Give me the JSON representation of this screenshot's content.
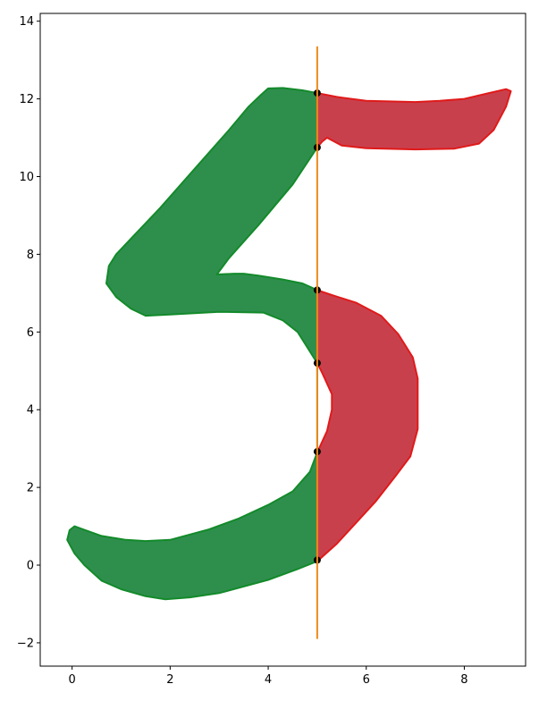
{
  "chart_data": {
    "type": "area",
    "xlim": [
      -0.65,
      9.25
    ],
    "ylim": [
      -2.6,
      14.2
    ],
    "x_ticks": [
      0,
      2,
      4,
      6,
      8
    ],
    "y_ticks": [
      -2,
      0,
      2,
      4,
      6,
      8,
      10,
      12,
      14
    ],
    "x_tick_labels": [
      "0",
      "2",
      "4",
      "6",
      "8"
    ],
    "y_tick_labels": [
      "−2",
      "0",
      "2",
      "4",
      "6",
      "8",
      "10",
      "12",
      "14"
    ],
    "grid": false,
    "legend": "none",
    "colors": {
      "left_fill": "#2e8f4d",
      "left_stroke": "#138a2a",
      "right_fill": "#c9404d",
      "right_stroke": "#e01a1a",
      "cut_line": "#ee8a1c",
      "points": "#000000"
    },
    "cut_line": {
      "x": 5.0,
      "y_range": [
        -1.9,
        13.35
      ]
    },
    "series": [
      {
        "part": "left",
        "polygon": [
          [
            5.0,
            12.15
          ],
          [
            4.7,
            12.22
          ],
          [
            4.3,
            12.28
          ],
          [
            4.0,
            12.27
          ],
          [
            3.85,
            12.1
          ],
          [
            3.6,
            11.8
          ],
          [
            3.2,
            11.2
          ],
          [
            2.5,
            10.2
          ],
          [
            1.8,
            9.2
          ],
          [
            1.2,
            8.4
          ],
          [
            0.9,
            8.0
          ],
          [
            0.75,
            7.7
          ],
          [
            0.7,
            7.25
          ],
          [
            0.9,
            6.9
          ],
          [
            1.2,
            6.6
          ],
          [
            1.5,
            6.42
          ],
          [
            2.0,
            6.45
          ],
          [
            3.0,
            6.52
          ],
          [
            3.9,
            6.5
          ],
          [
            4.3,
            6.3
          ],
          [
            4.6,
            6.0
          ],
          [
            5.0,
            5.2
          ],
          [
            5.0,
            2.9
          ],
          [
            4.85,
            2.4
          ],
          [
            4.5,
            1.9
          ],
          [
            4.0,
            1.55
          ],
          [
            3.4,
            1.2
          ],
          [
            2.8,
            0.92
          ],
          [
            2.0,
            0.65
          ],
          [
            1.5,
            0.62
          ],
          [
            1.1,
            0.65
          ],
          [
            0.6,
            0.75
          ],
          [
            0.2,
            0.93
          ],
          [
            0.05,
            1.0
          ],
          [
            -0.05,
            0.9
          ],
          [
            -0.1,
            0.65
          ],
          [
            0.05,
            0.3
          ],
          [
            0.25,
            0.0
          ],
          [
            0.6,
            -0.4
          ],
          [
            1.0,
            -0.62
          ],
          [
            1.5,
            -0.8
          ],
          [
            1.9,
            -0.88
          ],
          [
            2.4,
            -0.83
          ],
          [
            3.0,
            -0.72
          ],
          [
            4.0,
            -0.38
          ],
          [
            4.6,
            -0.1
          ],
          [
            5.0,
            0.1
          ],
          [
            5.0,
            7.08
          ],
          [
            4.7,
            7.25
          ],
          [
            4.3,
            7.35
          ],
          [
            3.8,
            7.45
          ],
          [
            3.5,
            7.5
          ],
          [
            3.3,
            7.5
          ],
          [
            2.95,
            7.48
          ],
          [
            3.2,
            7.9
          ],
          [
            3.8,
            8.75
          ],
          [
            4.5,
            9.8
          ],
          [
            5.0,
            10.75
          ]
        ]
      },
      {
        "part": "right",
        "polygon": [
          [
            5.0,
            12.15
          ],
          [
            5.4,
            12.05
          ],
          [
            6.0,
            11.95
          ],
          [
            7.0,
            11.92
          ],
          [
            7.5,
            11.95
          ],
          [
            8.0,
            12.0
          ],
          [
            8.5,
            12.15
          ],
          [
            8.85,
            12.25
          ],
          [
            8.95,
            12.2
          ],
          [
            8.85,
            11.8
          ],
          [
            8.6,
            11.2
          ],
          [
            8.3,
            10.85
          ],
          [
            7.8,
            10.72
          ],
          [
            7.0,
            10.7
          ],
          [
            6.0,
            10.73
          ],
          [
            5.5,
            10.8
          ],
          [
            5.2,
            11.0
          ],
          [
            5.1,
            10.9
          ],
          [
            5.0,
            10.75
          ]
        ]
      },
      {
        "part": "right",
        "polygon": [
          [
            5.0,
            7.08
          ],
          [
            5.3,
            6.95
          ],
          [
            5.8,
            6.75
          ],
          [
            6.3,
            6.42
          ],
          [
            6.65,
            5.95
          ],
          [
            6.95,
            5.35
          ],
          [
            7.05,
            4.8
          ],
          [
            7.05,
            3.5
          ],
          [
            6.9,
            2.8
          ],
          [
            6.6,
            2.3
          ],
          [
            6.2,
            1.65
          ],
          [
            5.8,
            1.1
          ],
          [
            5.4,
            0.55
          ],
          [
            5.0,
            0.1
          ],
          [
            5.0,
            2.9
          ],
          [
            5.2,
            3.45
          ],
          [
            5.3,
            4.0
          ],
          [
            5.3,
            4.4
          ],
          [
            5.1,
            4.95
          ],
          [
            5.0,
            5.2
          ]
        ]
      }
    ],
    "points": [
      [
        5.0,
        12.15
      ],
      [
        5.0,
        10.75
      ],
      [
        5.0,
        7.08
      ],
      [
        5.0,
        5.2
      ],
      [
        5.0,
        2.92
      ],
      [
        5.0,
        0.13
      ]
    ]
  }
}
